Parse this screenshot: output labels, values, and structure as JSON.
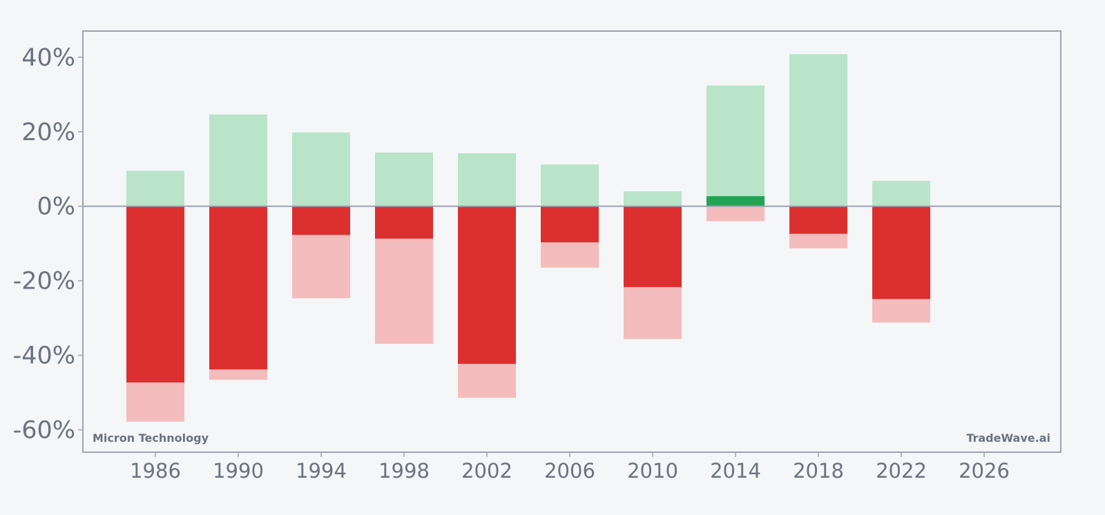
{
  "chart_data": {
    "type": "bar",
    "description_labels": {
      "left_watermark": "Micron Technology",
      "right_watermark": "TradeWave.ai"
    },
    "x_ticks": [
      "1986",
      "1990",
      "1994",
      "1998",
      "2002",
      "2006",
      "2010",
      "2014",
      "2018",
      "2022",
      "2026"
    ],
    "y_ticks": [
      {
        "value": 40,
        "label": "40%"
      },
      {
        "value": 20,
        "label": "20%"
      },
      {
        "value": 0,
        "label": "0%"
      },
      {
        "value": -20,
        "label": "-20%"
      },
      {
        "value": -40,
        "label": "-40%"
      },
      {
        "value": -60,
        "label": "-60%"
      }
    ],
    "xlim": [
      1982.5,
      2029.7
    ],
    "ylim": [
      -66,
      47
    ],
    "grid": false,
    "bar_width_years": 2.8,
    "series": [
      {
        "bars": [
          {
            "year": 1986,
            "max_gain": 9.5,
            "max_drawdown": -57.8,
            "final_return": -47.3
          },
          {
            "year": 1990,
            "max_gain": 24.6,
            "max_drawdown": -46.6,
            "final_return": -43.8
          },
          {
            "year": 1994,
            "max_gain": 19.8,
            "max_drawdown": -24.7,
            "final_return": -7.7
          },
          {
            "year": 1998,
            "max_gain": 14.4,
            "max_drawdown": -36.9,
            "final_return": -8.7
          },
          {
            "year": 2002,
            "max_gain": 14.2,
            "max_drawdown": -51.4,
            "final_return": -42.3
          },
          {
            "year": 2006,
            "max_gain": 11.2,
            "max_drawdown": -16.5,
            "final_return": -9.7
          },
          {
            "year": 2010,
            "max_gain": 4.0,
            "max_drawdown": -35.6,
            "final_return": -21.7
          },
          {
            "year": 2014,
            "max_gain": 32.4,
            "max_drawdown": -4.0,
            "final_return": 2.7
          },
          {
            "year": 2018,
            "max_gain": 40.8,
            "max_drawdown": -11.3,
            "final_return": -7.4
          },
          {
            "year": 2022,
            "max_gain": 6.8,
            "max_drawdown": -31.2,
            "final_return": -24.9
          }
        ]
      }
    ],
    "colors": {
      "gain_light": "#b9e4c9",
      "loss_light": "#f4bcbc",
      "positive": "#22a454",
      "negative": "#dc3030",
      "axis": "#9ca3af",
      "frame": "#9ca3af",
      "text": "#6b7280"
    }
  }
}
